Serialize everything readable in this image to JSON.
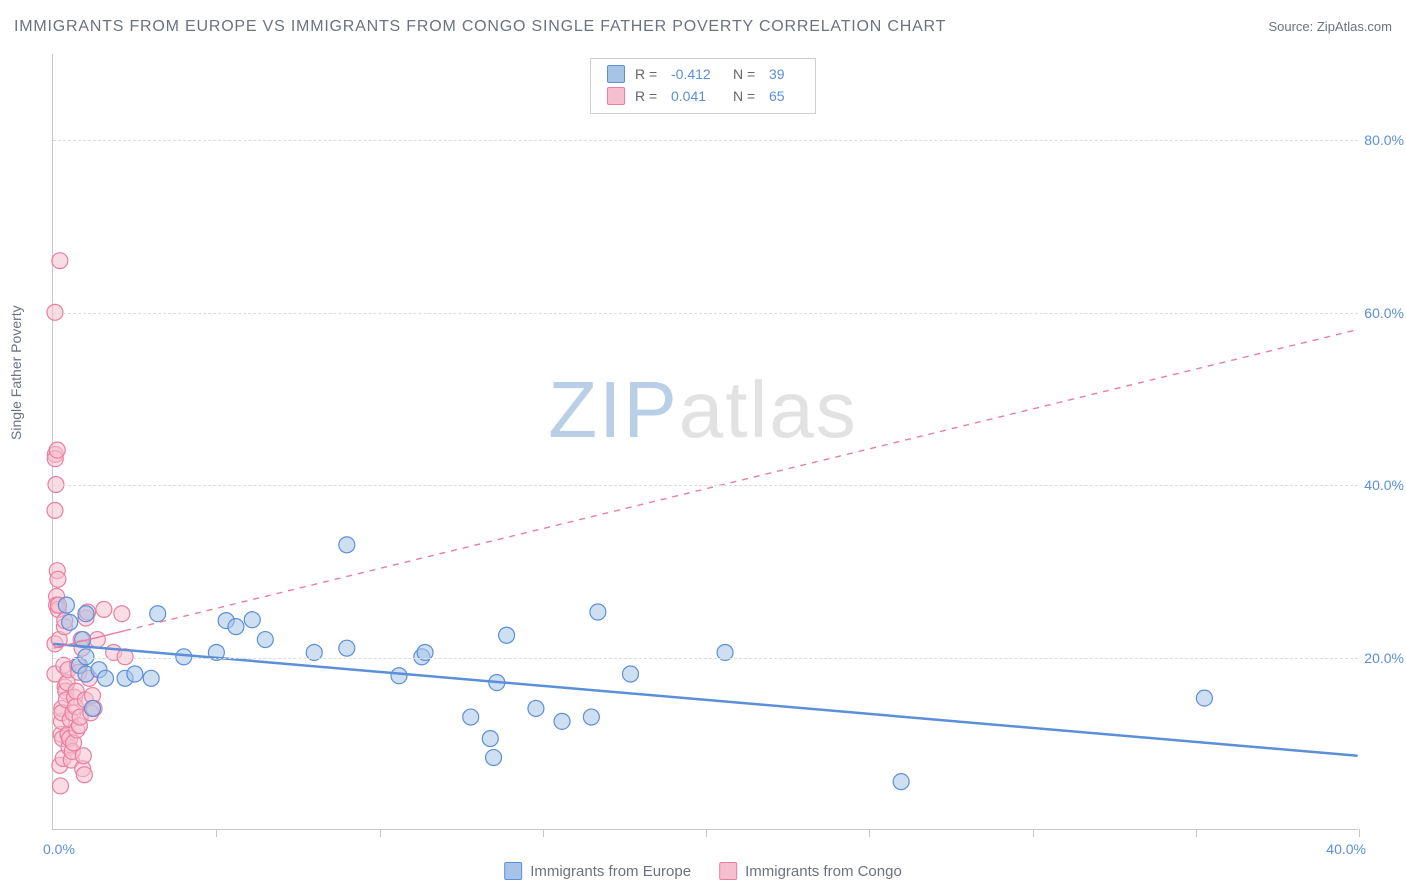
{
  "title": "IMMIGRANTS FROM EUROPE VS IMMIGRANTS FROM CONGO SINGLE FATHER POVERTY CORRELATION CHART",
  "source_label": "Source: ",
  "source_value": "ZipAtlas.com",
  "y_axis_label": "Single Father Poverty",
  "watermark": {
    "part1": "ZIP",
    "part2": "atlas"
  },
  "chart": {
    "type": "scatter",
    "x_domain": [
      0,
      40
    ],
    "y_domain": [
      0,
      90
    ],
    "x_ticks": [
      0,
      5,
      10,
      15,
      20,
      25,
      30,
      35,
      40
    ],
    "x_tick_labels": {
      "0": "0.0%",
      "40": "40.0%"
    },
    "y_gridlines": [
      20,
      40,
      60,
      80
    ],
    "y_tick_labels": {
      "20": "20.0%",
      "40": "40.0%",
      "60": "60.0%",
      "80": "80.0%"
    },
    "background_color": "#ffffff",
    "grid_color": "#dcdcdc",
    "axis_color": "#c8c8c8",
    "series": [
      {
        "id": "europe",
        "name": "Immigrants from Europe",
        "fill": "#a6c4e8",
        "stroke": "#5b8fd9",
        "marker_radius": 8,
        "fill_opacity": 0.55,
        "R": "-0.412",
        "N": "39",
        "regression": {
          "x1": 0,
          "y1": 21.5,
          "x2": 40,
          "y2": 8.5,
          "solid_until_x": 40,
          "dash": "0",
          "width": 2.5
        },
        "points": [
          [
            0.4,
            26
          ],
          [
            0.5,
            24
          ],
          [
            0.8,
            19
          ],
          [
            0.9,
            22
          ],
          [
            1.0,
            25
          ],
          [
            1.0,
            20
          ],
          [
            1.0,
            18
          ],
          [
            1.2,
            14
          ],
          [
            1.4,
            18.5
          ],
          [
            1.6,
            17.5
          ],
          [
            2.2,
            17.5
          ],
          [
            2.5,
            18.0
          ],
          [
            3.0,
            17.5
          ],
          [
            3.2,
            25
          ],
          [
            4.0,
            20
          ],
          [
            5.0,
            20.5
          ],
          [
            5.3,
            24.2
          ],
          [
            5.6,
            23.5
          ],
          [
            6.1,
            24.3
          ],
          [
            6.5,
            22
          ],
          [
            8.0,
            20.5
          ],
          [
            9.0,
            21
          ],
          [
            9.0,
            33
          ],
          [
            10.6,
            17.8
          ],
          [
            11.3,
            20
          ],
          [
            11.4,
            20.5
          ],
          [
            12.8,
            13.0
          ],
          [
            13.4,
            10.5
          ],
          [
            13.5,
            8.3
          ],
          [
            13.6,
            17.0
          ],
          [
            13.9,
            22.5
          ],
          [
            14.8,
            14.0
          ],
          [
            15.6,
            12.5
          ],
          [
            16.5,
            13.0
          ],
          [
            16.7,
            25.2
          ],
          [
            17.7,
            18.0
          ],
          [
            20.6,
            20.5
          ],
          [
            26.0,
            5.5
          ],
          [
            35.3,
            15.2
          ]
        ]
      },
      {
        "id": "congo",
        "name": "Immigrants from Congo",
        "fill": "#f6bfcf",
        "stroke": "#e97fa0",
        "marker_radius": 8,
        "fill_opacity": 0.55,
        "R": "0.041",
        "N": "65",
        "regression": {
          "x1": 0,
          "y1": 21.0,
          "x2": 40,
          "y2": 58.0,
          "solid_until_x": 2.2,
          "dash": "6 6",
          "width": 1.4
        },
        "points": [
          [
            0.05,
            37
          ],
          [
            0.05,
            60
          ],
          [
            0.05,
            21.5
          ],
          [
            0.05,
            18
          ],
          [
            0.06,
            43.5
          ],
          [
            0.06,
            43.0
          ],
          [
            0.08,
            40
          ],
          [
            0.1,
            27
          ],
          [
            0.1,
            26
          ],
          [
            0.12,
            44
          ],
          [
            0.12,
            30
          ],
          [
            0.14,
            29
          ],
          [
            0.15,
            25.5
          ],
          [
            0.16,
            26
          ],
          [
            0.18,
            22
          ],
          [
            0.2,
            66
          ],
          [
            0.2,
            7.4
          ],
          [
            0.22,
            5.0
          ],
          [
            0.24,
            11
          ],
          [
            0.25,
            12.5
          ],
          [
            0.26,
            14
          ],
          [
            0.26,
            13.5
          ],
          [
            0.28,
            10.5
          ],
          [
            0.3,
            8.2
          ],
          [
            0.32,
            19
          ],
          [
            0.34,
            23.5
          ],
          [
            0.35,
            24.2
          ],
          [
            0.36,
            16.5
          ],
          [
            0.38,
            16.0
          ],
          [
            0.4,
            15.0
          ],
          [
            0.42,
            17.0
          ],
          [
            0.45,
            18.5
          ],
          [
            0.45,
            11.0
          ],
          [
            0.48,
            9.5
          ],
          [
            0.5,
            10.5
          ],
          [
            0.52,
            12.7
          ],
          [
            0.55,
            8.0
          ],
          [
            0.58,
            9.0
          ],
          [
            0.6,
            13.5
          ],
          [
            0.62,
            10.0
          ],
          [
            0.65,
            15.3
          ],
          [
            0.68,
            14.2
          ],
          [
            0.7,
            16.0
          ],
          [
            0.72,
            11.5
          ],
          [
            0.75,
            19.0
          ],
          [
            0.78,
            18.2
          ],
          [
            0.8,
            12.0
          ],
          [
            0.82,
            13.0
          ],
          [
            0.85,
            22.0
          ],
          [
            0.88,
            21.0
          ],
          [
            0.9,
            7.0
          ],
          [
            0.92,
            8.5
          ],
          [
            0.95,
            6.3
          ],
          [
            0.98,
            15.0
          ],
          [
            1.0,
            24.5
          ],
          [
            1.05,
            25.2
          ],
          [
            1.1,
            17.5
          ],
          [
            1.15,
            13.5
          ],
          [
            1.2,
            15.5
          ],
          [
            1.25,
            14.0
          ],
          [
            1.35,
            22.0
          ],
          [
            1.55,
            25.5
          ],
          [
            1.85,
            20.5
          ],
          [
            2.1,
            25.0
          ],
          [
            2.2,
            20.0
          ]
        ]
      }
    ]
  },
  "legend_top": {
    "rows": [
      {
        "swatch": "europe",
        "R_label": "R =",
        "R_val": "-0.412",
        "N_label": "N =",
        "N_val": "39"
      },
      {
        "swatch": "congo",
        "R_label": "R =",
        "R_val": "0.041",
        "N_label": "N =",
        "N_val": "65"
      }
    ]
  },
  "legend_bottom": [
    {
      "swatch": "europe",
      "label": "Immigrants from Europe"
    },
    {
      "swatch": "congo",
      "label": "Immigrants from Congo"
    }
  ]
}
